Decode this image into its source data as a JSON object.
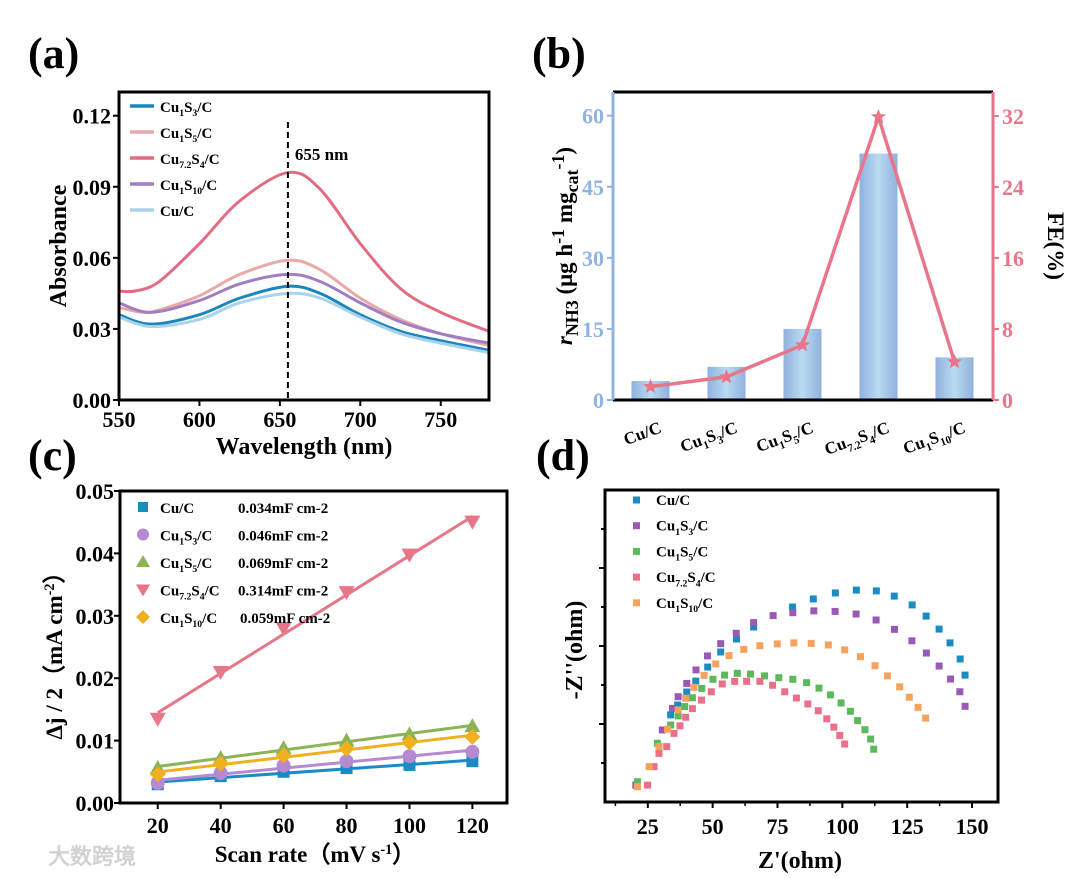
{
  "panel_labels": [
    "(a)",
    "(b)",
    "(c)",
    "(d)"
  ],
  "watermark": "大数跨境",
  "chart_data": [
    {
      "panel": "(a)",
      "type": "line",
      "xlabel": "Wavelength (nm)",
      "ylabel": "Absorbance",
      "xlim": [
        550,
        780
      ],
      "ylim": [
        0,
        0.13
      ],
      "xticks": [
        "550",
        "600",
        "650",
        "700",
        "750"
      ],
      "xtick_values": [
        550,
        600,
        650,
        700,
        750
      ],
      "yticks": [
        "0.00",
        "0.03",
        "0.06",
        "0.09",
        "0.12"
      ],
      "ytick_values": [
        0,
        0.03,
        0.06,
        0.09,
        0.12
      ],
      "annotation": {
        "text": "655 nm",
        "x": 655
      },
      "legend": "top-left",
      "series": [
        {
          "name": "Cu1S3/C",
          "color": "#1a86bb",
          "x": [
            550,
            570,
            600,
            625,
            655,
            675,
            700,
            725,
            750,
            780
          ],
          "y": [
            0.036,
            0.032,
            0.036,
            0.043,
            0.048,
            0.045,
            0.036,
            0.029,
            0.025,
            0.021
          ]
        },
        {
          "name": "Cu1S5/C",
          "color": "#e8a9a8",
          "x": [
            550,
            565,
            575,
            600,
            625,
            655,
            675,
            700,
            725,
            750,
            780
          ],
          "y": [
            0.039,
            0.037,
            0.038,
            0.044,
            0.053,
            0.059,
            0.055,
            0.043,
            0.034,
            0.028,
            0.023
          ]
        },
        {
          "name": "Cu7.2S4/C",
          "color": "#e26d82",
          "x": [
            550,
            560,
            575,
            600,
            625,
            655,
            675,
            700,
            725,
            750,
            780
          ],
          "y": [
            0.046,
            0.046,
            0.05,
            0.066,
            0.084,
            0.096,
            0.089,
            0.066,
            0.047,
            0.037,
            0.029
          ]
        },
        {
          "name": "Cu1S10/C",
          "color": "#a07ec4",
          "x": [
            550,
            570,
            600,
            625,
            655,
            675,
            700,
            725,
            750,
            780
          ],
          "y": [
            0.041,
            0.037,
            0.042,
            0.049,
            0.053,
            0.05,
            0.041,
            0.033,
            0.028,
            0.024
          ]
        },
        {
          "name": "Cu/C",
          "color": "#a9d3e9",
          "x": [
            550,
            570,
            600,
            625,
            655,
            675,
            700,
            725,
            750,
            780
          ],
          "y": [
            0.035,
            0.031,
            0.034,
            0.041,
            0.045,
            0.043,
            0.035,
            0.028,
            0.024,
            0.02
          ]
        }
      ]
    },
    {
      "panel": "(b)",
      "type": "bar",
      "categories": [
        "Cu/C",
        "Cu1S3/C",
        "Cu1S5/C",
        "Cu7.2S4/C",
        "Cu1S10/C"
      ],
      "series": [
        {
          "name": "rNH3",
          "axis": "left",
          "values": [
            4,
            7,
            15,
            52,
            9
          ],
          "color": "#8fb4e0"
        },
        {
          "name": "FE",
          "axis": "right",
          "type": "line",
          "marker": "star",
          "values": [
            1.5,
            2.6,
            6.2,
            31.9,
            4.3
          ],
          "color": "#e8768a"
        }
      ],
      "ylabel_left": "rNH3 (μg h-1 mgcat-1)",
      "ylabel_right": "FE(%)",
      "ylim_left": [
        0,
        65
      ],
      "ylim_right": [
        0,
        34.7
      ],
      "yticks_left": [
        "0",
        "15",
        "30",
        "45",
        "60"
      ],
      "ytick_values_left": [
        0,
        15,
        30,
        45,
        60
      ],
      "yticks_right": [
        "0",
        "8",
        "16",
        "24",
        "32"
      ],
      "ytick_values_right": [
        0,
        8,
        16,
        24,
        32
      ],
      "left_color": "#8fb4e0",
      "right_color": "#e8768a"
    },
    {
      "panel": "(c)",
      "type": "scatter",
      "xlabel": "Scan rate（mV s-1）",
      "ylabel": "Δj / 2（mA cm-2）",
      "xlim": [
        8,
        131
      ],
      "ylim": [
        0,
        0.05
      ],
      "xticks": [
        "20",
        "40",
        "60",
        "80",
        "100",
        "120"
      ],
      "xtick_values": [
        20,
        40,
        60,
        80,
        100,
        120
      ],
      "yticks": [
        "0.00",
        "0.01",
        "0.02",
        "0.03",
        "0.04",
        "0.05"
      ],
      "ytick_values": [
        0,
        0.01,
        0.02,
        0.03,
        0.04,
        0.05
      ],
      "legend": "top-left",
      "x": [
        20,
        40,
        60,
        80,
        100,
        120
      ],
      "series": [
        {
          "name": "Cu/C",
          "cdl": "0.034mF cm-2",
          "marker": "square",
          "color": "#1a8cc4",
          "values": [
            0.003,
            0.0043,
            0.005,
            0.0056,
            0.0061,
            0.0067
          ]
        },
        {
          "name": "Cu1S3/C",
          "cdl": "0.046mF cm-2",
          "marker": "circle",
          "color": "#b58ad0",
          "values": [
            0.0032,
            0.0048,
            0.006,
            0.0067,
            0.0075,
            0.0082
          ]
        },
        {
          "name": "Cu1S5/C",
          "cdl": "0.069mF cm-2",
          "marker": "triangle-up",
          "color": "#8cb454",
          "values": [
            0.0056,
            0.0072,
            0.0088,
            0.01,
            0.011,
            0.0123
          ]
        },
        {
          "name": "Cu7.2S4/C",
          "cdl": "0.314mF cm-2",
          "marker": "triangle-down",
          "color": "#e8768a",
          "values": [
            0.0135,
            0.021,
            0.028,
            0.0338,
            0.0398,
            0.0451
          ]
        },
        {
          "name": "Cu1S10/C",
          "cdl": "0.059mF cm-2",
          "marker": "diamond",
          "color": "#f0b020",
          "values": [
            0.0046,
            0.0063,
            0.0076,
            0.0087,
            0.0097,
            0.0106
          ]
        }
      ]
    },
    {
      "panel": "(d)",
      "type": "scatter",
      "xlabel": "Z'(ohm)",
      "ylabel": "-Z''(ohm)",
      "xlim": [
        8.5,
        160
      ],
      "ylim": [
        0,
        120
      ],
      "xticks": [
        "25",
        "50",
        "75",
        "100",
        "125",
        "150"
      ],
      "xtick_values": [
        25,
        50,
        75,
        100,
        125,
        150
      ],
      "legend": "top-left",
      "series": [
        {
          "name": "Cu/C",
          "color": "#1a8cc4",
          "points": [
            [
              20.4,
              6.5
            ],
            [
              33.8,
              33.5
            ],
            [
              36.5,
              37.3
            ],
            [
              40.0,
              42.3
            ],
            [
              43.5,
              46.5
            ],
            [
              48.1,
              51.9
            ],
            [
              53.1,
              57.7
            ],
            [
              59.2,
              62.7
            ],
            [
              65.8,
              67.3
            ],
            [
              80.8,
              75.0
            ],
            [
              88.8,
              78.1
            ],
            [
              97.3,
              80.4
            ],
            [
              105.4,
              81.5
            ],
            [
              113.1,
              81.2
            ],
            [
              120.0,
              79.2
            ],
            [
              126.9,
              75.8
            ],
            [
              132.3,
              71.5
            ],
            [
              137.3,
              66.5
            ],
            [
              141.5,
              61.2
            ],
            [
              145.4,
              55.0
            ],
            [
              147.3,
              48.8
            ]
          ]
        },
        {
          "name": "Cu1S3/C",
          "color": "#9b59b6",
          "points": [
            [
              20.4,
              6.5
            ],
            [
              30.6,
              27.7
            ],
            [
              34.5,
              36.0
            ],
            [
              36.7,
              40.5
            ],
            [
              40.0,
              45.6
            ],
            [
              43.6,
              50.8
            ],
            [
              48.0,
              56.2
            ],
            [
              53.1,
              60.9
            ],
            [
              59.1,
              64.9
            ],
            [
              65.8,
              69.0
            ],
            [
              73.3,
              71.7
            ],
            [
              80.9,
              72.8
            ],
            [
              89.0,
              73.5
            ],
            [
              97.2,
              73.3
            ],
            [
              105.3,
              72.3
            ],
            [
              113.0,
              70.0
            ],
            [
              120.1,
              66.4
            ],
            [
              126.8,
              62.0
            ],
            [
              132.4,
              57.3
            ],
            [
              137.3,
              52.3
            ],
            [
              141.7,
              47.3
            ],
            [
              145.3,
              42.4
            ],
            [
              147.3,
              36.8
            ]
          ]
        },
        {
          "name": "Cu1S5/C",
          "color": "#5cb85c",
          "points": [
            [
              21.0,
              7.8
            ],
            [
              28.7,
              22.6
            ],
            [
              33.8,
              29.6
            ],
            [
              36.7,
              33.1
            ],
            [
              39.2,
              36.7
            ],
            [
              42.2,
              40.1
            ],
            [
              45.8,
              43.7
            ],
            [
              50.1,
              47.2
            ],
            [
              54.6,
              48.8
            ],
            [
              59.5,
              49.5
            ],
            [
              64.6,
              49.2
            ],
            [
              70.0,
              48.5
            ],
            [
              75.5,
              47.8
            ],
            [
              80.9,
              47.2
            ],
            [
              86.2,
              45.9
            ],
            [
              91.0,
              43.8
            ],
            [
              95.4,
              41.2
            ],
            [
              99.5,
              38.1
            ],
            [
              103.1,
              34.9
            ],
            [
              105.9,
              31.3
            ],
            [
              108.7,
              27.8
            ],
            [
              110.9,
              24.2
            ],
            [
              112.1,
              20.3
            ]
          ]
        },
        {
          "name": "Cu7.2S4/C",
          "color": "#ec6f8a",
          "points": [
            [
              24.9,
              6.5
            ],
            [
              27.4,
              13.6
            ],
            [
              29.3,
              18.7
            ],
            [
              32.3,
              21.3
            ],
            [
              35.1,
              26.4
            ],
            [
              37.4,
              29.3
            ],
            [
              39.6,
              32.6
            ],
            [
              42.2,
              35.9
            ],
            [
              45.7,
              39.2
            ],
            [
              49.5,
              42.4
            ],
            [
              53.7,
              45.4
            ],
            [
              58.5,
              46.4
            ],
            [
              63.1,
              46.4
            ],
            [
              68.2,
              46.4
            ],
            [
              73.1,
              44.9
            ],
            [
              77.8,
              42.4
            ],
            [
              82.3,
              40.0
            ],
            [
              86.7,
              37.7
            ],
            [
              90.7,
              35.1
            ],
            [
              94.0,
              32.0
            ],
            [
              96.7,
              28.8
            ],
            [
              99.0,
              25.6
            ],
            [
              100.9,
              22.3
            ]
          ]
        },
        {
          "name": "Cu1S10/C",
          "color": "#f5a25d",
          "points": [
            [
              21.0,
              5.9
            ],
            [
              25.5,
              13.6
            ],
            [
              29.3,
              21.3
            ],
            [
              32.6,
              28.0
            ],
            [
              36.7,
              35.4
            ],
            [
              39.6,
              39.9
            ],
            [
              42.8,
              44.1
            ],
            [
              46.7,
              48.7
            ],
            [
              51.2,
              53.1
            ],
            [
              56.3,
              56.3
            ],
            [
              62.0,
              58.7
            ],
            [
              68.2,
              60.1
            ],
            [
              74.9,
              60.8
            ],
            [
              81.3,
              61.2
            ],
            [
              88.0,
              61.0
            ],
            [
              94.6,
              60.4
            ],
            [
              100.9,
              58.5
            ],
            [
              107.0,
              55.9
            ],
            [
              112.6,
              52.4
            ],
            [
              117.4,
              48.5
            ],
            [
              122.1,
              44.3
            ],
            [
              125.8,
              40.3
            ],
            [
              129.2,
              36.4
            ],
            [
              132.1,
              32.3
            ]
          ]
        }
      ]
    }
  ]
}
